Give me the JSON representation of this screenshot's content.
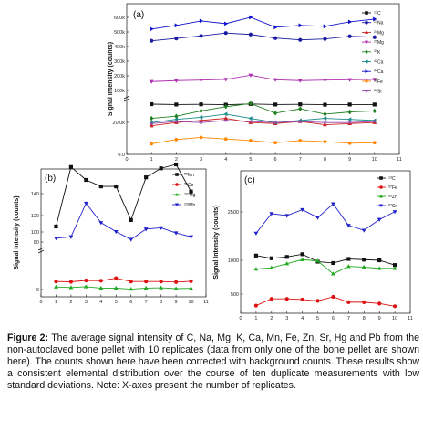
{
  "chart_data": [
    {
      "panel": "a",
      "type": "line",
      "ylabel": "Signal Intensity (counts)",
      "y_upper_ticks": [
        "600k",
        "500k",
        "400k",
        "300k",
        "200k",
        "100k"
      ],
      "y_lower_ticks": [
        "20.0k",
        "0.0"
      ],
      "x": [
        1,
        2,
        3,
        4,
        5,
        6,
        7,
        8,
        9,
        10
      ],
      "xticks": [
        "0",
        "1",
        "2",
        "3",
        "4",
        "5",
        "6",
        "7",
        "8",
        "9",
        "10",
        "11"
      ],
      "series": [
        {
          "name": "13C",
          "sup": "13",
          "el": "C",
          "color": "#111111",
          "marker": "square",
          "values": [
            85000,
            83000,
            84000,
            82000,
            86000,
            83000,
            84000,
            82000,
            83000,
            83000
          ]
        },
        {
          "name": "23Na",
          "sup": "23",
          "el": "Na",
          "color": "#1a1aa0",
          "marker": "circle",
          "values": [
            435000,
            448000,
            462000,
            478000,
            470000,
            450000,
            440000,
            445000,
            460000,
            455000
          ]
        },
        {
          "name": "24Mg",
          "sup": "24",
          "el": "Mg",
          "color": "#cc2222",
          "marker": "triangle-up",
          "values": [
            27000,
            30000,
            32000,
            34000,
            30000,
            29000,
            31000,
            28000,
            29000,
            30000
          ]
        },
        {
          "name": "25Mg",
          "sup": "25",
          "el": "Mg",
          "color": "#b030b0",
          "marker": "triangle-down",
          "values": [
            210000,
            215000,
            218000,
            222000,
            245000,
            220000,
            215000,
            218000,
            220000,
            222000
          ]
        },
        {
          "name": "39K",
          "sup": "39",
          "el": "K",
          "color": "#208020",
          "marker": "diamond",
          "values": [
            34000,
            36000,
            41000,
            45000,
            48000,
            39000,
            43000,
            38000,
            40000,
            41000
          ]
        },
        {
          "name": "42Ca",
          "sup": "42",
          "el": "Ca",
          "color": "#1a8a8a",
          "marker": "triangle-left",
          "values": [
            30000,
            33000,
            35000,
            38000,
            34000,
            30000,
            32000,
            34000,
            33000,
            32000
          ]
        },
        {
          "name": "44Ca",
          "sup": "44",
          "el": "Ca",
          "color": "#1010cc",
          "marker": "triangle-right",
          "values": [
            500000,
            520000,
            545000,
            530000,
            565000,
            510000,
            520000,
            515000,
            540000,
            555000
          ]
        },
        {
          "name": "56Fe",
          "sup": "56",
          "el": "Fe",
          "color": "#ff8800",
          "marker": "hexagon",
          "values": [
            10000,
            14000,
            16000,
            14500,
            13000,
            11000,
            13000,
            12000,
            10500,
            11000
          ]
        },
        {
          "name": "88Sr",
          "sup": "88",
          "el": "Sr",
          "color": "#9944aa",
          "marker": "star",
          "values": [
            29000,
            31000,
            30000,
            32000,
            31000,
            30000,
            31000,
            30000,
            30000,
            31000
          ]
        }
      ]
    },
    {
      "panel": "b",
      "type": "line",
      "ylabel": "Signal intensity (counts)",
      "yticks": [
        "140",
        "120",
        "100",
        "80",
        "6"
      ],
      "x": [
        1,
        2,
        3,
        4,
        5,
        6,
        7,
        8,
        9,
        10
      ],
      "xticks": [
        "0",
        "1",
        "2",
        "3",
        "4",
        "5",
        "6",
        "7",
        "8",
        "9",
        "10",
        "11"
      ],
      "series": [
        {
          "name": "55Mn",
          "sup": "55",
          "el": "Mn",
          "color": "#111111",
          "marker": "square",
          "values": [
            97,
            143,
            133,
            128,
            128,
            102,
            135,
            142,
            145,
            124
          ]
        },
        {
          "name": "59Co",
          "sup": "59",
          "el": "Co",
          "color": "#dd1111",
          "marker": "circle",
          "values": [
            8.6,
            8.5,
            9.0,
            8.9,
            9.8,
            8.6,
            8.6,
            8.6,
            8.4,
            8.7
          ]
        },
        {
          "name": "202Hg",
          "sup": "202",
          "el": "Hg",
          "color": "#22aa22",
          "marker": "triangle-up",
          "values": [
            6.6,
            6.4,
            6.7,
            6.2,
            6.2,
            5.8,
            6.2,
            6.3,
            6.0,
            6.1
          ]
        },
        {
          "name": "208Pb",
          "sup": "208",
          "el": "Pb",
          "color": "#2222cc",
          "marker": "triangle-down",
          "values": [
            88,
            89,
            115,
            100,
            93,
            87,
            95,
            96,
            92,
            89
          ]
        }
      ]
    },
    {
      "panel": "c",
      "type": "line",
      "ylabel": "Signal Intensity (counts)",
      "yticks": [
        "2500",
        "1000",
        "500"
      ],
      "x": [
        1,
        2,
        3,
        4,
        5,
        6,
        7,
        8,
        9,
        10
      ],
      "xticks": [
        "0",
        "1",
        "2",
        "3",
        "4",
        "5",
        "6",
        "7",
        "8",
        "9",
        "10",
        "11"
      ],
      "series": [
        {
          "name": "13C",
          "sup": "13",
          "el": "C",
          "color": "#111111",
          "marker": "square",
          "values": [
            1070,
            1030,
            1050,
            1090,
            980,
            960,
            1020,
            1010,
            1000,
            930
          ]
        },
        {
          "name": "57Fe",
          "sup": "57",
          "el": "Fe",
          "color": "#dd1111",
          "marker": "circle",
          "values": [
            330,
            430,
            430,
            420,
            400,
            460,
            380,
            380,
            360,
            320
          ]
        },
        {
          "name": "66Zn",
          "sup": "66",
          "el": "Zn",
          "color": "#22aa22",
          "marker": "triangle-up",
          "values": [
            870,
            890,
            950,
            1010,
            990,
            800,
            910,
            900,
            880,
            880
          ]
        },
        {
          "name": "67Sr",
          "sup": "67",
          "el": "Sr",
          "color": "#2222cc",
          "marker": "triangle-down",
          "values": [
            2280,
            2480,
            2460,
            2520,
            2440,
            2580,
            2360,
            2310,
            2420,
            2500
          ]
        }
      ]
    }
  ],
  "panel_labels": {
    "a": "(a)",
    "b": "(b)",
    "c": "(c)"
  },
  "caption": {
    "label": "Figure 2:",
    "text": " The average signal intensity of C, Na, Mg, K, Ca, Mn, Fe, Zn, Sr, Hg and Pb from the non-autoclaved bone pellet with 10 replicates (data from only one of the bone pellet are shown here). The counts shown here have been corrected with background counts. These results show a consistent elemental distribution over the course of ten duplicate measurements with low standard deviations. Note: X-axes present the number of replicates."
  }
}
